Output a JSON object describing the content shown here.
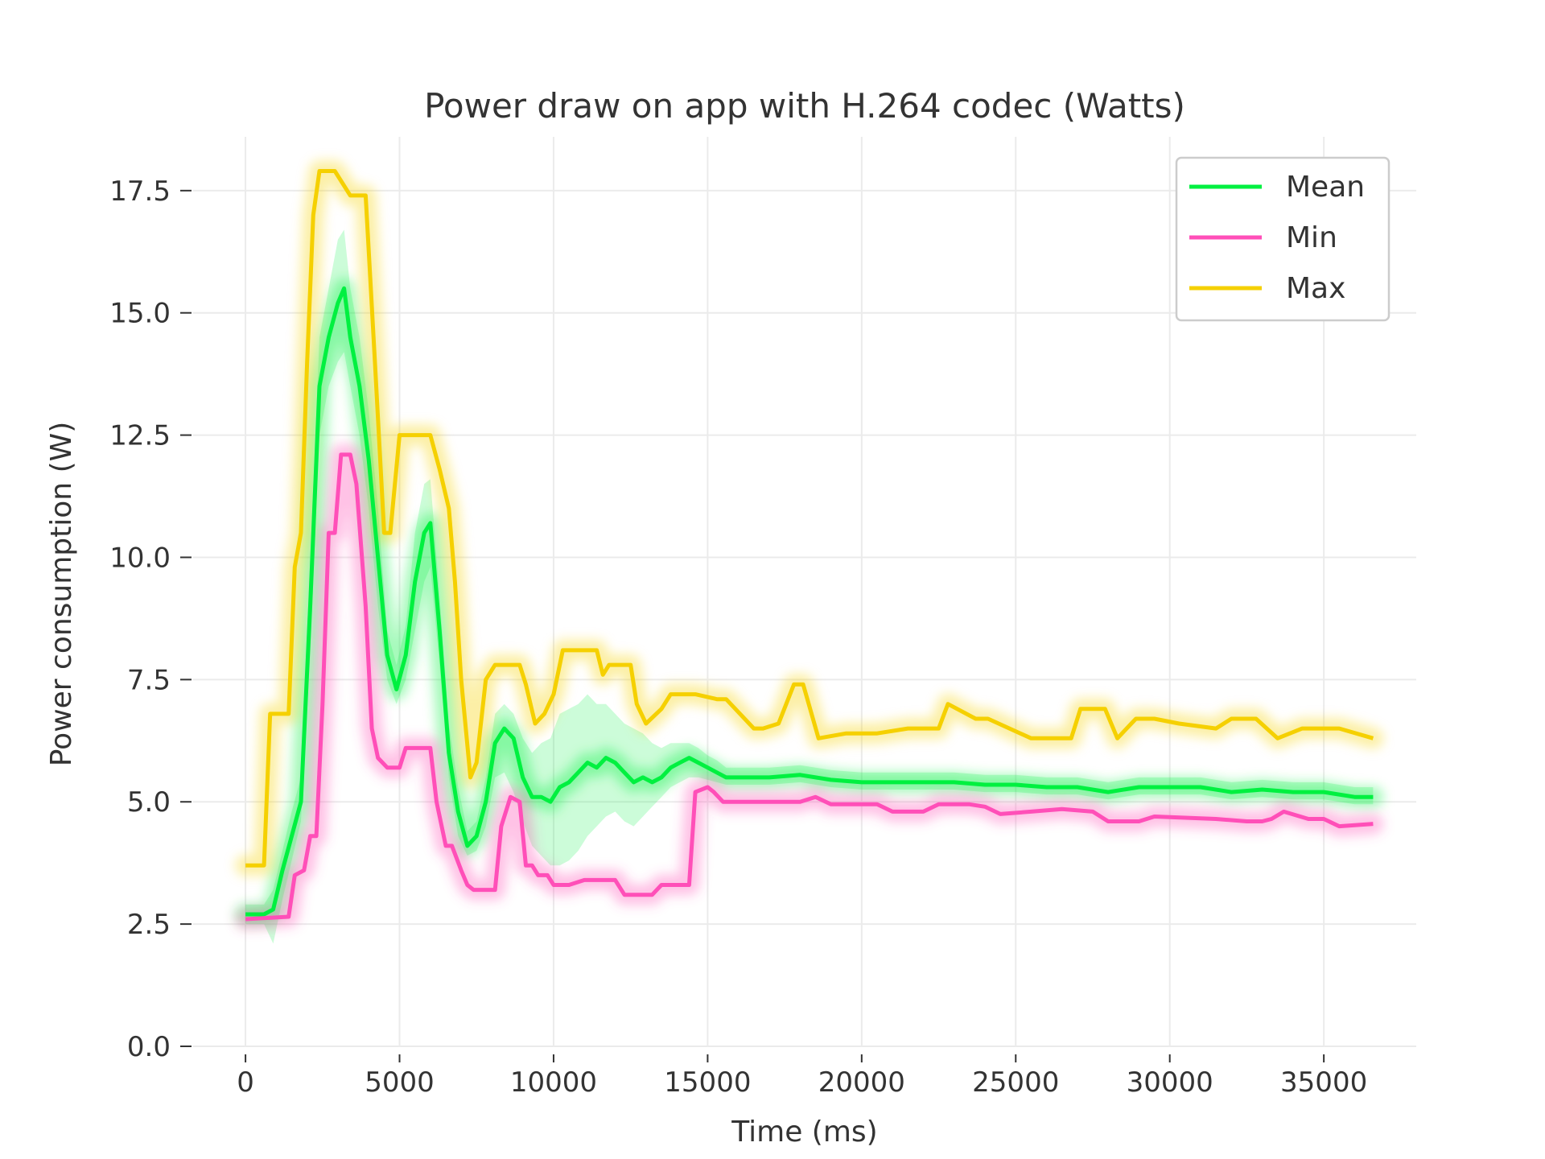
{
  "chart_data": {
    "type": "line",
    "title": "Power draw on app with H.264 codec (Watts)",
    "xlabel": "Time (ms)",
    "ylabel": "Power consumption (W)",
    "xlim": [
      -1700,
      38000
    ],
    "ylim": [
      0,
      18.6
    ],
    "xticks": [
      0,
      5000,
      10000,
      15000,
      20000,
      25000,
      30000,
      35000
    ],
    "yticks": [
      0.0,
      2.5,
      5.0,
      7.5,
      10.0,
      12.5,
      15.0,
      17.5
    ],
    "xtick_labels": [
      "0",
      "5000",
      "10000",
      "15000",
      "20000",
      "25000",
      "30000",
      "35000"
    ],
    "ytick_labels": [
      "0.0",
      "2.5",
      "5.0",
      "7.5",
      "10.0",
      "12.5",
      "15.0",
      "17.5"
    ],
    "grid": true,
    "legend_position": "top-right",
    "series": [
      {
        "name": "Mean",
        "color": "#00f040",
        "x": [
          0,
          600,
          900,
          1200,
          1500,
          1800,
          2100,
          2400,
          2700,
          3000,
          3200,
          3400,
          3700,
          4000,
          4300,
          4600,
          4900,
          5200,
          5500,
          5800,
          6000,
          6300,
          6600,
          6900,
          7200,
          7500,
          7800,
          8100,
          8400,
          8700,
          9000,
          9300,
          9600,
          9900,
          10200,
          10500,
          10800,
          11100,
          11400,
          11700,
          12000,
          12300,
          12600,
          12900,
          13200,
          13500,
          13800,
          14100,
          14400,
          14700,
          15000,
          15300,
          15600,
          16000,
          17000,
          18000,
          19000,
          20000,
          21000,
          22000,
          23000,
          24000,
          25000,
          26000,
          27000,
          28000,
          29000,
          30000,
          31000,
          32000,
          33000,
          34000,
          35000,
          36000,
          36600
        ],
        "values": [
          2.7,
          2.7,
          2.8,
          3.6,
          4.3,
          5.0,
          9.0,
          13.5,
          14.5,
          15.2,
          15.5,
          14.5,
          13.5,
          12.0,
          10.0,
          8.0,
          7.3,
          8.0,
          9.5,
          10.5,
          10.7,
          8.5,
          6.0,
          4.8,
          4.1,
          4.3,
          5.0,
          6.2,
          6.5,
          6.3,
          5.5,
          5.1,
          5.1,
          5.0,
          5.3,
          5.4,
          5.6,
          5.8,
          5.7,
          5.9,
          5.8,
          5.6,
          5.4,
          5.5,
          5.4,
          5.5,
          5.7,
          5.8,
          5.9,
          5.8,
          5.7,
          5.6,
          5.5,
          5.5,
          5.5,
          5.55,
          5.45,
          5.4,
          5.4,
          5.4,
          5.4,
          5.35,
          5.35,
          5.3,
          5.3,
          5.2,
          5.3,
          5.3,
          5.3,
          5.2,
          5.25,
          5.2,
          5.2,
          5.1,
          5.1
        ],
        "band_low": [
          2.5,
          2.5,
          2.1,
          3.0,
          3.8,
          4.6,
          8.0,
          12.5,
          13.5,
          14.0,
          14.2,
          13.5,
          12.5,
          11.0,
          9.0,
          7.5,
          7.0,
          7.5,
          8.5,
          9.5,
          9.8,
          7.8,
          5.5,
          4.3,
          3.9,
          4.0,
          4.5,
          5.5,
          5.6,
          5.2,
          4.6,
          4.1,
          3.9,
          3.7,
          3.7,
          3.8,
          4.0,
          4.3,
          4.5,
          4.7,
          4.8,
          4.6,
          4.5,
          4.7,
          4.9,
          5.1,
          5.3,
          5.4,
          5.5,
          5.5,
          5.45,
          5.4,
          5.35,
          5.35,
          5.35,
          5.4,
          5.3,
          5.25,
          5.25,
          5.25,
          5.25,
          5.2,
          5.2,
          5.15,
          5.15,
          5.05,
          5.15,
          5.15,
          5.15,
          5.05,
          5.1,
          5.05,
          5.05,
          4.95,
          4.95
        ],
        "band_high": [
          2.9,
          2.9,
          3.2,
          4.0,
          4.8,
          5.5,
          10.0,
          14.5,
          15.5,
          16.5,
          16.7,
          15.5,
          14.5,
          13.0,
          11.0,
          8.5,
          7.8,
          8.6,
          10.5,
          11.5,
          11.6,
          9.2,
          6.6,
          5.3,
          4.4,
          4.6,
          5.5,
          6.8,
          7.0,
          6.8,
          6.3,
          6.0,
          6.2,
          6.3,
          6.8,
          6.9,
          7.0,
          7.2,
          7.0,
          7.0,
          6.8,
          6.6,
          6.5,
          6.4,
          6.2,
          6.1,
          6.2,
          6.2,
          6.2,
          6.1,
          5.95,
          5.85,
          5.7,
          5.7,
          5.7,
          5.75,
          5.65,
          5.6,
          5.6,
          5.6,
          5.6,
          5.55,
          5.55,
          5.5,
          5.5,
          5.4,
          5.5,
          5.5,
          5.5,
          5.4,
          5.45,
          5.4,
          5.4,
          5.3,
          5.3
        ]
      },
      {
        "name": "Min",
        "color": "#ff4fb8",
        "x": [
          0,
          1400,
          1600,
          1900,
          2100,
          2300,
          2500,
          2700,
          2900,
          3100,
          3400,
          3600,
          3900,
          4100,
          4300,
          4600,
          5000,
          5200,
          6000,
          6200,
          6500,
          6700,
          7000,
          7200,
          7400,
          7800,
          8100,
          8300,
          8600,
          8900,
          9100,
          9300,
          9500,
          9800,
          10000,
          10500,
          11000,
          11500,
          12000,
          12300,
          12500,
          13200,
          13500,
          14000,
          14400,
          14600,
          15000,
          15200,
          15500,
          16500,
          18000,
          18500,
          19000,
          20500,
          21000,
          22000,
          22500,
          23500,
          24000,
          24500,
          25500,
          26500,
          27500,
          28000,
          29000,
          29500,
          31500,
          32500,
          33000,
          33300,
          33700,
          34500,
          35000,
          35500,
          36600
        ],
        "values": [
          2.6,
          2.65,
          3.5,
          3.6,
          4.3,
          4.3,
          7.0,
          10.5,
          10.5,
          12.1,
          12.1,
          11.5,
          9.0,
          6.5,
          5.9,
          5.7,
          5.7,
          6.1,
          6.1,
          5.0,
          4.1,
          4.1,
          3.6,
          3.3,
          3.2,
          3.2,
          3.2,
          4.5,
          5.1,
          5.0,
          3.7,
          3.7,
          3.5,
          3.5,
          3.3,
          3.3,
          3.4,
          3.4,
          3.4,
          3.1,
          3.1,
          3.1,
          3.3,
          3.3,
          3.3,
          5.2,
          5.3,
          5.2,
          5.0,
          5.0,
          5.0,
          5.1,
          4.95,
          4.95,
          4.8,
          4.8,
          4.95,
          4.95,
          4.9,
          4.75,
          4.8,
          4.85,
          4.8,
          4.6,
          4.6,
          4.7,
          4.65,
          4.6,
          4.6,
          4.65,
          4.8,
          4.65,
          4.65,
          4.5,
          4.55
        ]
      },
      {
        "name": "Max",
        "color": "#f5d000",
        "x": [
          0,
          600,
          800,
          1400,
          1600,
          1800,
          2000,
          2200,
          2400,
          2600,
          2900,
          3400,
          3600,
          3900,
          4200,
          4500,
          4700,
          5000,
          5200,
          6000,
          6300,
          6600,
          6800,
          7000,
          7300,
          7500,
          7800,
          8100,
          8500,
          8900,
          9100,
          9400,
          9700,
          10000,
          10300,
          10600,
          11400,
          11600,
          11800,
          12500,
          12700,
          13000,
          13500,
          13800,
          14600,
          15300,
          15600,
          16500,
          16800,
          17300,
          17800,
          18100,
          18600,
          19500,
          20500,
          21500,
          22500,
          22800,
          23700,
          24100,
          25500,
          26000,
          26800,
          27100,
          27900,
          28300,
          28900,
          29500,
          30300,
          31500,
          32000,
          32800,
          33500,
          34300,
          35000,
          35500,
          36600
        ],
        "values": [
          3.7,
          3.7,
          6.8,
          6.8,
          9.8,
          10.5,
          14.0,
          17.0,
          17.9,
          17.9,
          17.9,
          17.4,
          17.4,
          17.4,
          14.0,
          10.5,
          10.5,
          12.5,
          12.5,
          12.5,
          11.8,
          11.0,
          9.5,
          7.5,
          5.5,
          5.8,
          7.5,
          7.8,
          7.8,
          7.8,
          7.4,
          6.6,
          6.8,
          7.2,
          8.1,
          8.1,
          8.1,
          7.6,
          7.8,
          7.8,
          7.0,
          6.6,
          6.9,
          7.2,
          7.2,
          7.1,
          7.1,
          6.5,
          6.5,
          6.6,
          7.4,
          7.4,
          6.3,
          6.4,
          6.4,
          6.5,
          6.5,
          7.0,
          6.7,
          6.7,
          6.3,
          6.3,
          6.3,
          6.9,
          6.9,
          6.3,
          6.7,
          6.7,
          6.6,
          6.5,
          6.7,
          6.7,
          6.3,
          6.5,
          6.5,
          6.5,
          6.3
        ]
      }
    ]
  }
}
